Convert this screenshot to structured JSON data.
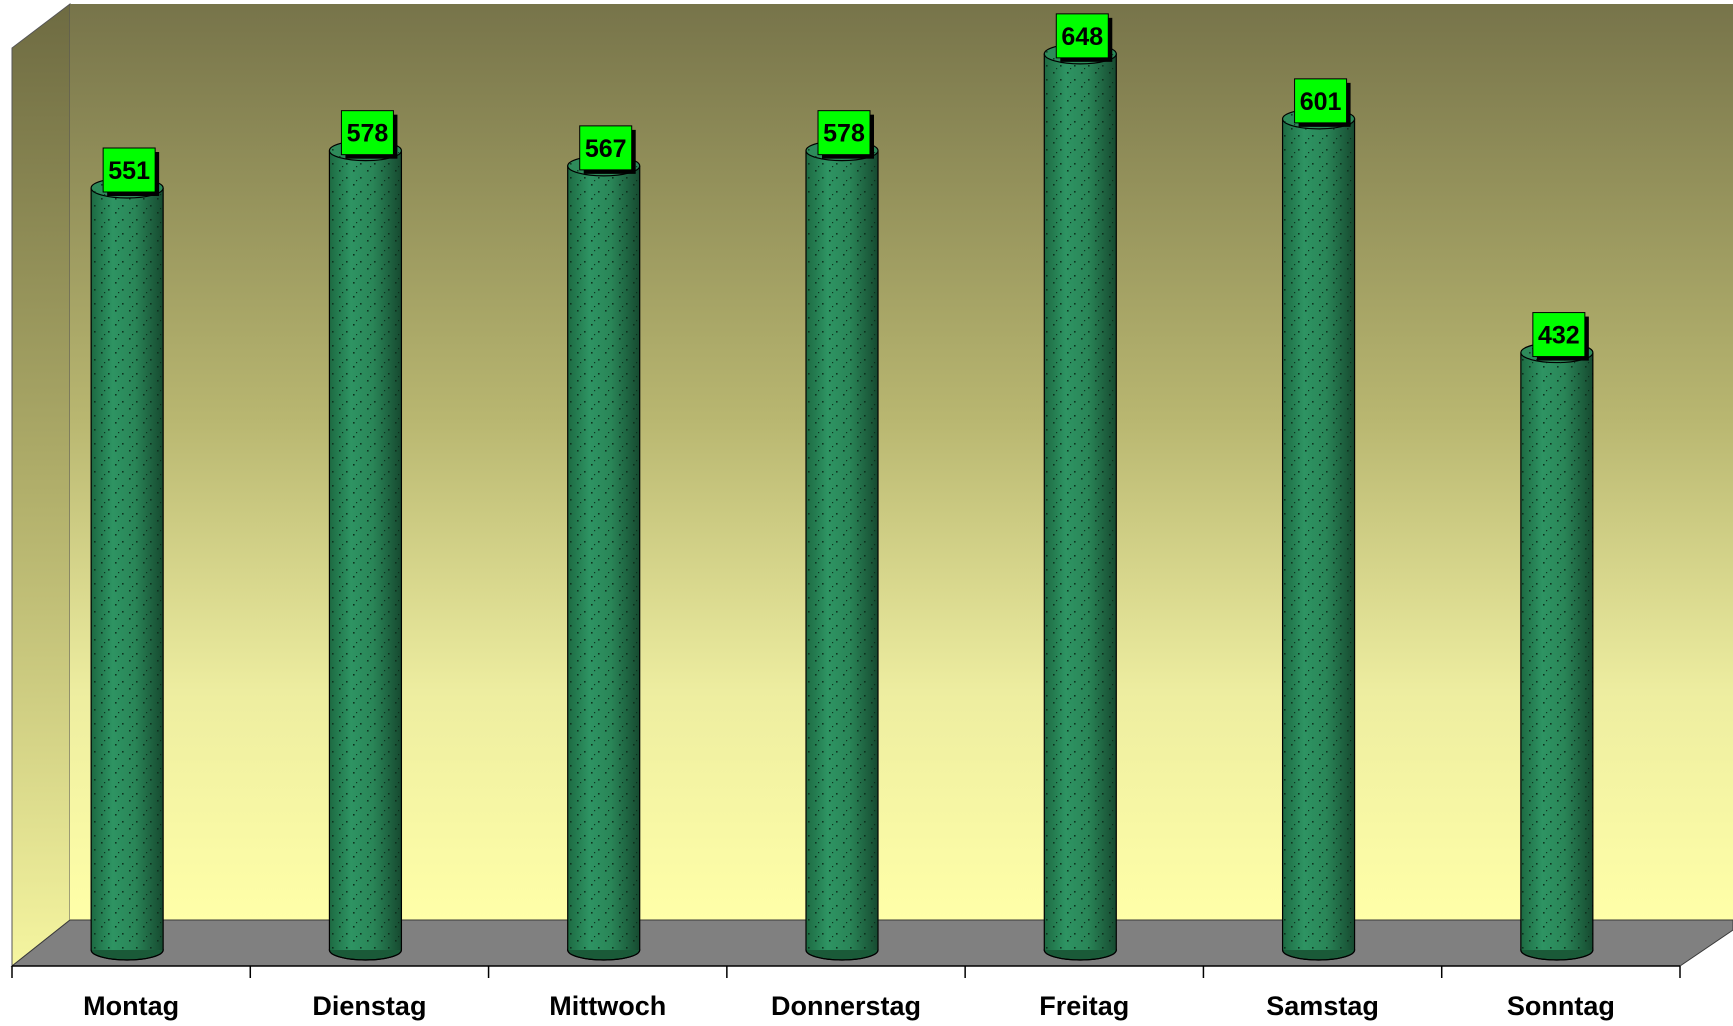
{
  "chart_data": {
    "type": "bar",
    "style": "3d-cylinder",
    "categories": [
      "Montag",
      "Dienstag",
      "Mittwoch",
      "Donnerstag",
      "Freitag",
      "Samstag",
      "Sonntag"
    ],
    "values": [
      551,
      578,
      567,
      578,
      648,
      601,
      432
    ],
    "data_labels": [
      "551",
      "578",
      "567",
      "578",
      "648",
      "601",
      "432"
    ],
    "title": "",
    "xlabel": "",
    "ylabel": "",
    "ylim": [
      0,
      700
    ],
    "grid": false,
    "legend": "none",
    "colors": {
      "bar": "#2e8b5a",
      "bar_dark": "#1a5a38",
      "label_box": "#00ff00",
      "wall_top": "#77744a",
      "wall_bottom": "#ffffa8",
      "floor": "#808080"
    }
  }
}
